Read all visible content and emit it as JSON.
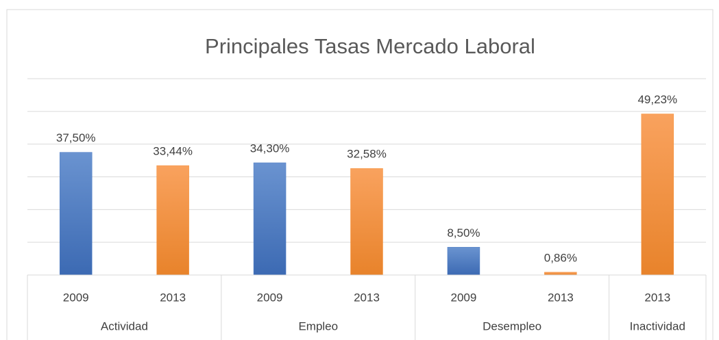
{
  "chart_data": {
    "type": "bar",
    "title": "Principales Tasas Mercado Laboral",
    "groups": [
      {
        "label": "Actividad",
        "categories": [
          "2009",
          "2013"
        ],
        "values": [
          37.5,
          33.44
        ],
        "value_labels": [
          "37,50%",
          "33,44%"
        ],
        "colors": [
          "#4a7ac4",
          "#f7923a"
        ]
      },
      {
        "label": "Empleo",
        "categories": [
          "2009",
          "2013"
        ],
        "values": [
          34.3,
          32.58
        ],
        "value_labels": [
          "34,30%",
          "32,58%"
        ],
        "colors": [
          "#4a7ac4",
          "#f7923a"
        ]
      },
      {
        "label": "Desempleo",
        "categories": [
          "2009",
          "2013"
        ],
        "values": [
          8.5,
          0.86
        ],
        "value_labels": [
          "8,50%",
          "0,86%"
        ],
        "colors": [
          "#4a7ac4",
          "#f7923a"
        ]
      },
      {
        "label": "Inactividad",
        "categories": [
          "2013"
        ],
        "values": [
          49.23
        ],
        "value_labels": [
          "49,23%"
        ],
        "colors": [
          "#f7923a"
        ]
      }
    ],
    "ylim": [
      0,
      60
    ],
    "yticks": [
      0,
      10,
      20,
      30,
      40,
      50,
      60
    ],
    "grid": true
  }
}
